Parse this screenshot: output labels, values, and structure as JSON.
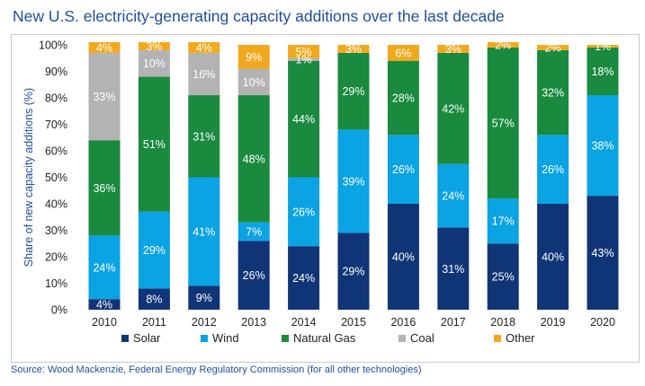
{
  "title": "New U.S. electricity-generating capacity additions over the last decade",
  "source": "Source: Wood Mackenzie, Federal Energy Regulatory Commission (for all other technologies)",
  "chart_data": {
    "type": "bar",
    "stacked": true,
    "title": "New U.S. electricity-generating capacity additions over the last decade",
    "xlabel": "",
    "ylabel": "Share of new capacity additions (%)",
    "ylim": [
      0,
      100
    ],
    "yticks": [
      "0%",
      "10%",
      "20%",
      "30%",
      "40%",
      "50%",
      "60%",
      "70%",
      "80%",
      "90%",
      "100%"
    ],
    "grid": false,
    "legend_position": "bottom",
    "categories": [
      "2010",
      "2011",
      "2012",
      "2013",
      "2014",
      "2015",
      "2016",
      "2017",
      "2018",
      "2019",
      "2020"
    ],
    "series": [
      {
        "name": "Solar",
        "color": "#0f3576",
        "label_color": "#ffffff",
        "values": [
          4,
          8,
          9,
          26,
          24,
          29,
          40,
          31,
          25,
          40,
          43
        ]
      },
      {
        "name": "Wind",
        "color": "#0aa3e3",
        "label_color": "#ffffff",
        "values": [
          24,
          29,
          41,
          7,
          26,
          39,
          26,
          24,
          17,
          26,
          38
        ]
      },
      {
        "name": "Natural Gas",
        "color": "#198a3e",
        "label_color": "#ffffff",
        "values": [
          36,
          51,
          31,
          48,
          44,
          29,
          28,
          42,
          57,
          32,
          18
        ]
      },
      {
        "name": "Coal",
        "color": "#b3b3b3",
        "label_color": "#ffffff",
        "values": [
          33,
          10,
          16,
          10,
          1,
          0,
          0,
          0,
          0,
          0,
          0
        ]
      },
      {
        "name": "Other",
        "color": "#f2a81d",
        "label_color": "#ffffff",
        "values": [
          4,
          3,
          4,
          9,
          5,
          3,
          6,
          3,
          2,
          2,
          1
        ]
      }
    ],
    "labels": [
      [
        "4%",
        "8%",
        "9%",
        "26%",
        "24%",
        "29%",
        "40%",
        "31%",
        "25%",
        "40%",
        "43%"
      ],
      [
        "24%",
        "29%",
        "41%",
        "7%",
        "26%",
        "39%",
        "26%",
        "24%",
        "17%",
        "26%",
        "38%"
      ],
      [
        "36%",
        "51%",
        "31%",
        "48%",
        "44%",
        "29%",
        "28%",
        "42%",
        "57%",
        "32%",
        "18%"
      ],
      [
        "33%",
        "10%",
        "16%",
        "10%",
        "1%",
        "",
        "",
        "",
        "",
        "",
        ""
      ],
      [
        "4%",
        "3%",
        "4%",
        "9%",
        "5%",
        "3%",
        "6%",
        "3%",
        "2%",
        "2%",
        "1%"
      ]
    ]
  }
}
